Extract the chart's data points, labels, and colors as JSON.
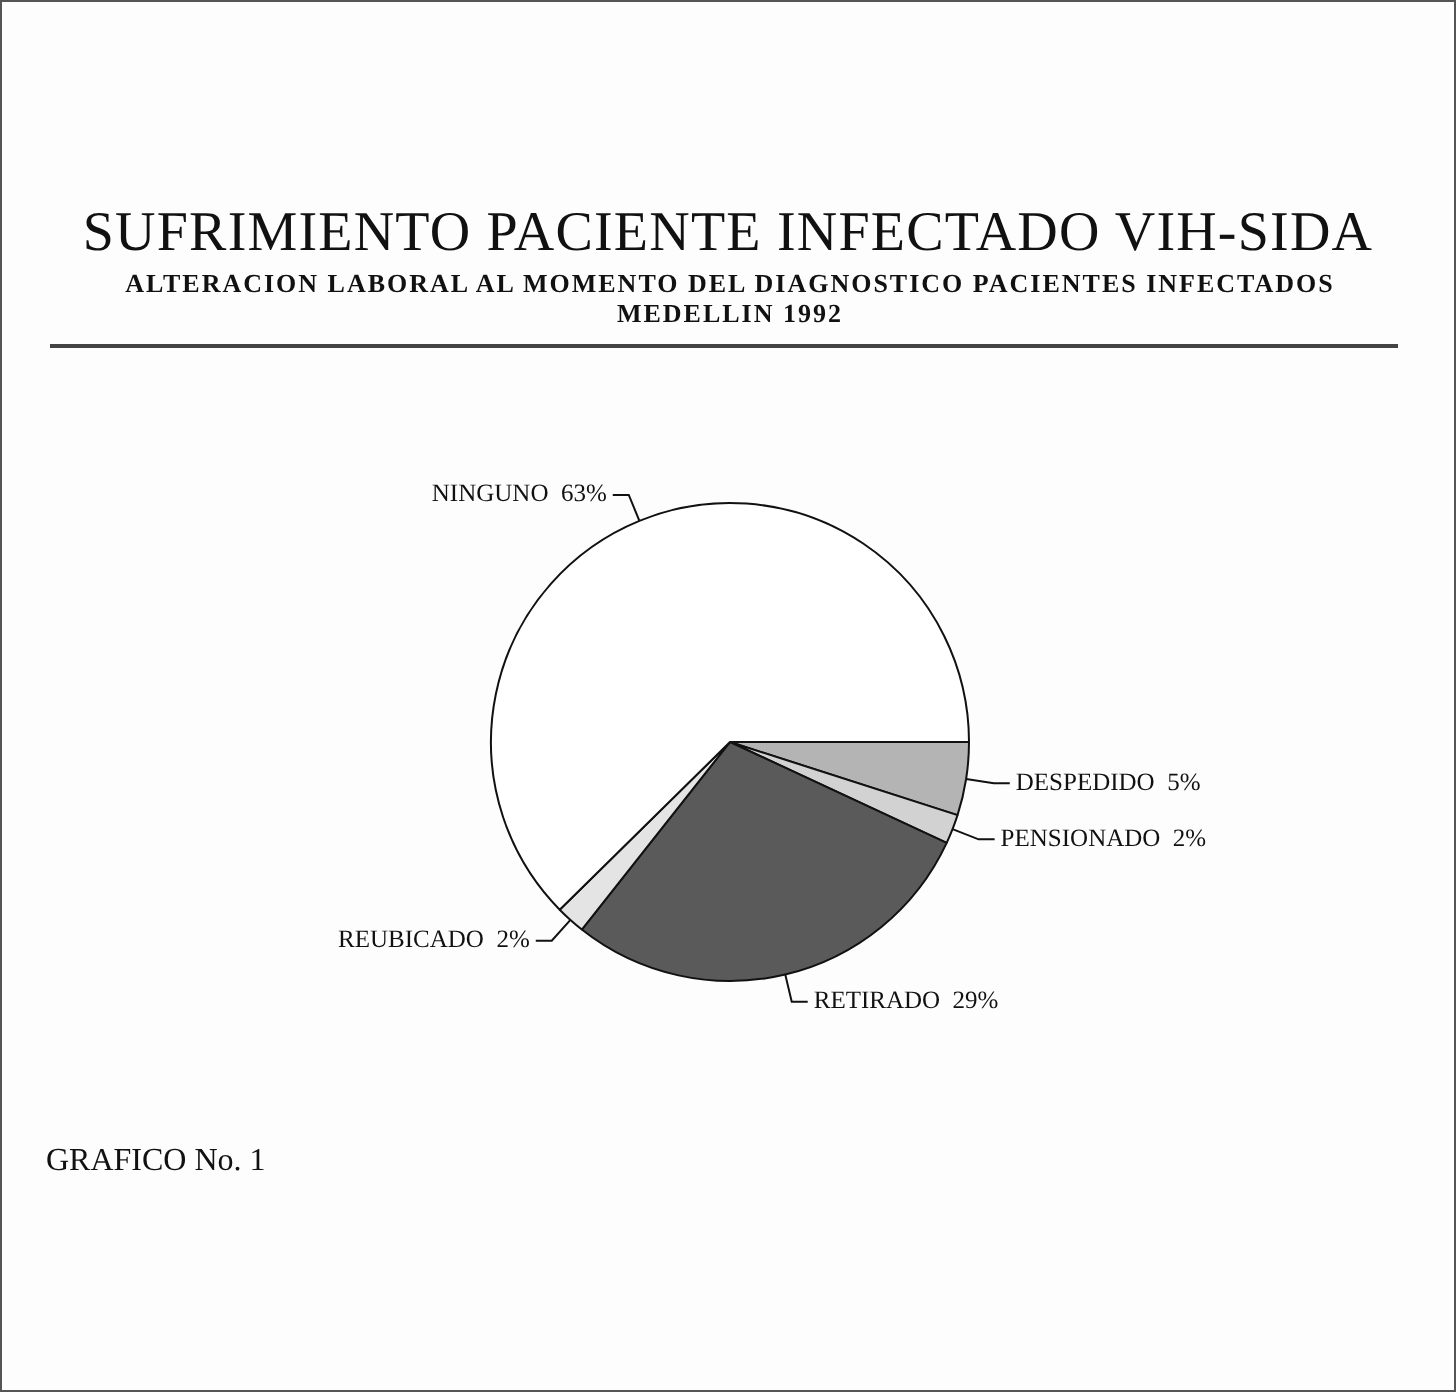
{
  "chart_data": {
    "type": "pie",
    "title": "SUFRIMIENTO PACIENTE INFECTADO VIH-SIDA",
    "subtitle": "ALTERACION LABORAL AL MOMENTO DEL DIAGNOSTICO PACIENTES INFECTADOS MEDELLIN 1992",
    "categories": [
      "DESPEDIDO",
      "PENSIONADO",
      "RETIRADO",
      "REUBICADO",
      "NINGUNO"
    ],
    "values": [
      5,
      2,
      29,
      2,
      63
    ],
    "value_labels": [
      "5%",
      "2%",
      "29%",
      "2%",
      "63%"
    ],
    "colors": [
      "#b4b4b4",
      "#d2d2d2",
      "#5a5a5a",
      "#e4e4e4",
      "#ffffff"
    ],
    "annotations": [
      "GRAFICO No. 1"
    ]
  }
}
